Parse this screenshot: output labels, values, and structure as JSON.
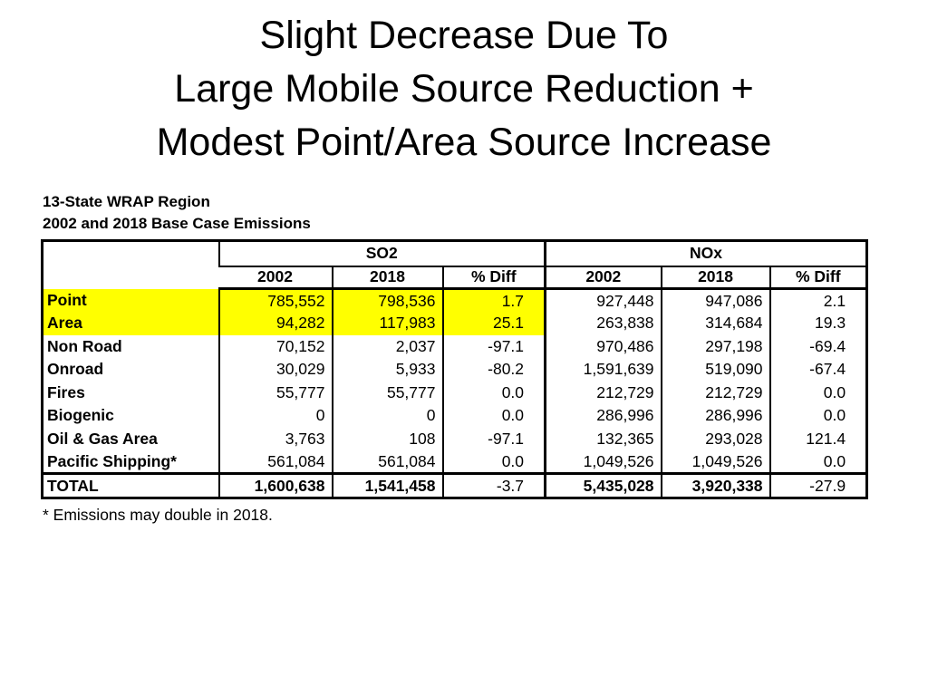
{
  "slide": {
    "title_lines": [
      "Slight Decrease Due To",
      "Large Mobile Source Reduction +",
      "Modest Point/Area Source Increase"
    ],
    "subtitle_lines": [
      "13-State WRAP Region",
      "2002 and 2018 Base Case Emissions"
    ],
    "footnote": "* Emissions may double in 2018."
  },
  "table": {
    "group_headers": {
      "so2": "SO2",
      "nox": "NOx"
    },
    "column_headers": [
      "2002",
      "2018",
      "% Diff",
      "2002",
      "2018",
      "% Diff"
    ],
    "rows": [
      {
        "label": "Point",
        "highlight": true,
        "values": [
          "785,552",
          "798,536",
          "1.7",
          "927,448",
          "947,086",
          "2.1"
        ]
      },
      {
        "label": "Area",
        "highlight": true,
        "values": [
          "94,282",
          "117,983",
          "25.1",
          "263,838",
          "314,684",
          "19.3"
        ]
      },
      {
        "label": "Non Road",
        "highlight": false,
        "values": [
          "70,152",
          "2,037",
          "-97.1",
          "970,486",
          "297,198",
          "-69.4"
        ]
      },
      {
        "label": "Onroad",
        "highlight": false,
        "values": [
          "30,029",
          "5,933",
          "-80.2",
          "1,591,639",
          "519,090",
          "-67.4"
        ]
      },
      {
        "label": "Fires",
        "highlight": false,
        "values": [
          "55,777",
          "55,777",
          "0.0",
          "212,729",
          "212,729",
          "0.0"
        ]
      },
      {
        "label": "Biogenic",
        "highlight": false,
        "values": [
          "0",
          "0",
          "0.0",
          "286,996",
          "286,996",
          "0.0"
        ]
      },
      {
        "label": "Oil & Gas Area",
        "highlight": false,
        "values": [
          "3,763",
          "108",
          "-97.1",
          "132,365",
          "293,028",
          "121.4"
        ]
      },
      {
        "label": "Pacific Shipping*",
        "highlight": false,
        "values": [
          "561,084",
          "561,084",
          "0.0",
          "1,049,526",
          "1,049,526",
          "0.0"
        ]
      }
    ],
    "total_row": {
      "label": "TOTAL",
      "values": [
        "1,600,638",
        "1,541,458",
        "-3.7",
        "5,435,028",
        "3,920,338",
        "-27.9"
      ]
    }
  },
  "colors": {
    "highlight": "#FFFF00",
    "text": "#000000",
    "background": "#FFFFFF",
    "border": "#000000"
  }
}
